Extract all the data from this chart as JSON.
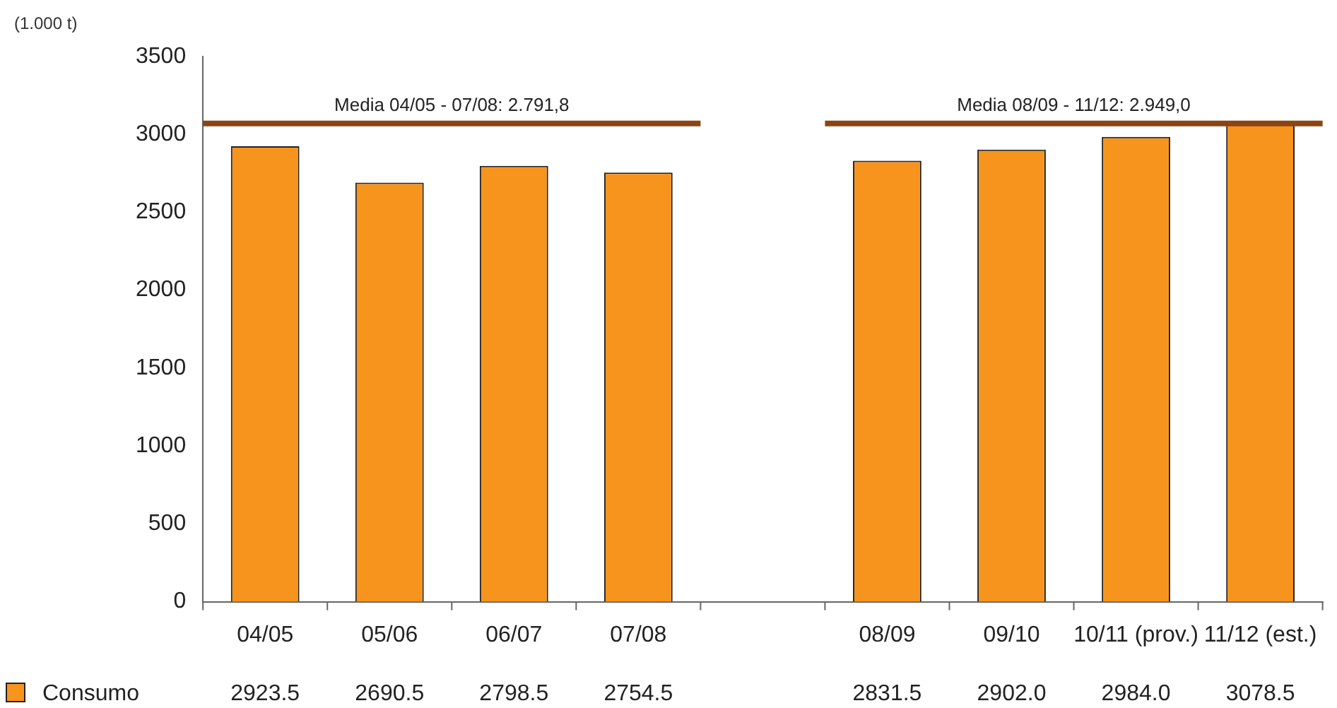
{
  "chart_data": {
    "type": "bar",
    "ylabel": "(1.000 t)",
    "categories": [
      "04/05",
      "05/06",
      "06/07",
      "07/08",
      null,
      "08/09",
      "09/10",
      "10/11 (prov.)",
      "11/12 (est.)"
    ],
    "series": [
      {
        "name": "Consumo",
        "color": "#f7941d",
        "values": [
          2923.5,
          2690.5,
          2798.5,
          2754.5,
          null,
          2831.5,
          2902.0,
          2984.0,
          3078.5
        ],
        "value_labels": [
          "2923.5",
          "2690.5",
          "2798.5",
          "2754.5",
          null,
          "2831.5",
          "2902.0",
          "2984.0",
          "3078.5"
        ]
      }
    ],
    "ylim": [
      0,
      3500
    ],
    "yticks": [
      0,
      500,
      1000,
      1500,
      2000,
      2500,
      3000,
      3500
    ],
    "grid": false,
    "legend": "bottom left",
    "ref_lines": [
      {
        "axis": "y",
        "value": 3070,
        "color": "#8b4513"
      }
    ],
    "annotations": [
      {
        "text": "Media 04/05 - 07/08: 2.791,8",
        "y": 3070
      },
      {
        "text": "Media 08/09 - 11/12: 2.949,0",
        "y": 3070
      }
    ]
  }
}
